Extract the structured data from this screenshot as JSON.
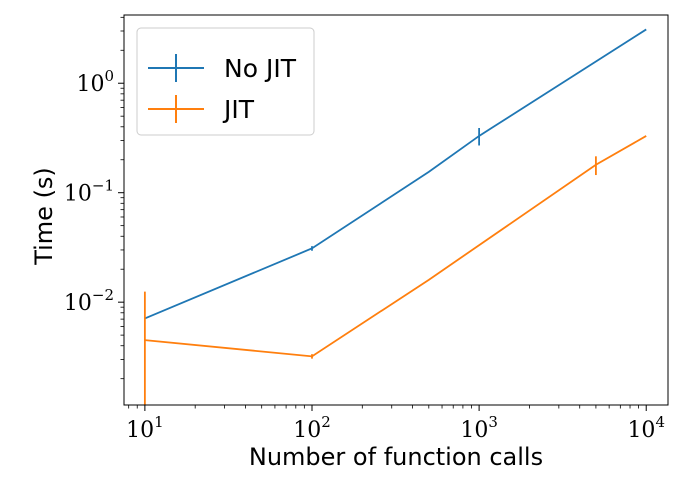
{
  "chart_data": {
    "type": "line",
    "title": "",
    "xlabel": "Number of function calls",
    "ylabel": "Time (s)",
    "xscale": "log",
    "yscale": "log",
    "xlim": [
      7.5,
      13500
    ],
    "ylim": [
      0.00115,
      4.2
    ],
    "x_ticks": [
      {
        "value": 10,
        "base": "10",
        "exp": "1"
      },
      {
        "value": 100,
        "base": "10",
        "exp": "2"
      },
      {
        "value": 1000,
        "base": "10",
        "exp": "3"
      },
      {
        "value": 10000,
        "base": "10",
        "exp": "4"
      }
    ],
    "y_ticks": [
      {
        "value": 0.01,
        "base": "10",
        "exp": "−2"
      },
      {
        "value": 0.1,
        "base": "10",
        "exp": "−1"
      },
      {
        "value": 1,
        "base": "10",
        "exp": "0"
      }
    ],
    "grid": false,
    "legend_position": "top-left",
    "series": [
      {
        "name": "No JIT",
        "color": "#1f77b4",
        "x": [
          10,
          100,
          500,
          1000,
          10000
        ],
        "y": [
          0.0071,
          0.031,
          0.155,
          0.33,
          3.1
        ],
        "err_low": [
          0,
          0.0015,
          0,
          0.06,
          0
        ],
        "err_high": [
          0,
          0.0015,
          0,
          0.06,
          0
        ]
      },
      {
        "name": "JIT",
        "color": "#ff7f0e",
        "x": [
          10,
          100,
          500,
          5000,
          10000
        ],
        "y": [
          0.0045,
          0.0032,
          0.016,
          0.18,
          0.33
        ],
        "err_low": [
          0.0034,
          0.00015,
          0,
          0.035,
          0
        ],
        "err_high": [
          0.008,
          0.00015,
          0,
          0.035,
          0
        ]
      }
    ]
  }
}
